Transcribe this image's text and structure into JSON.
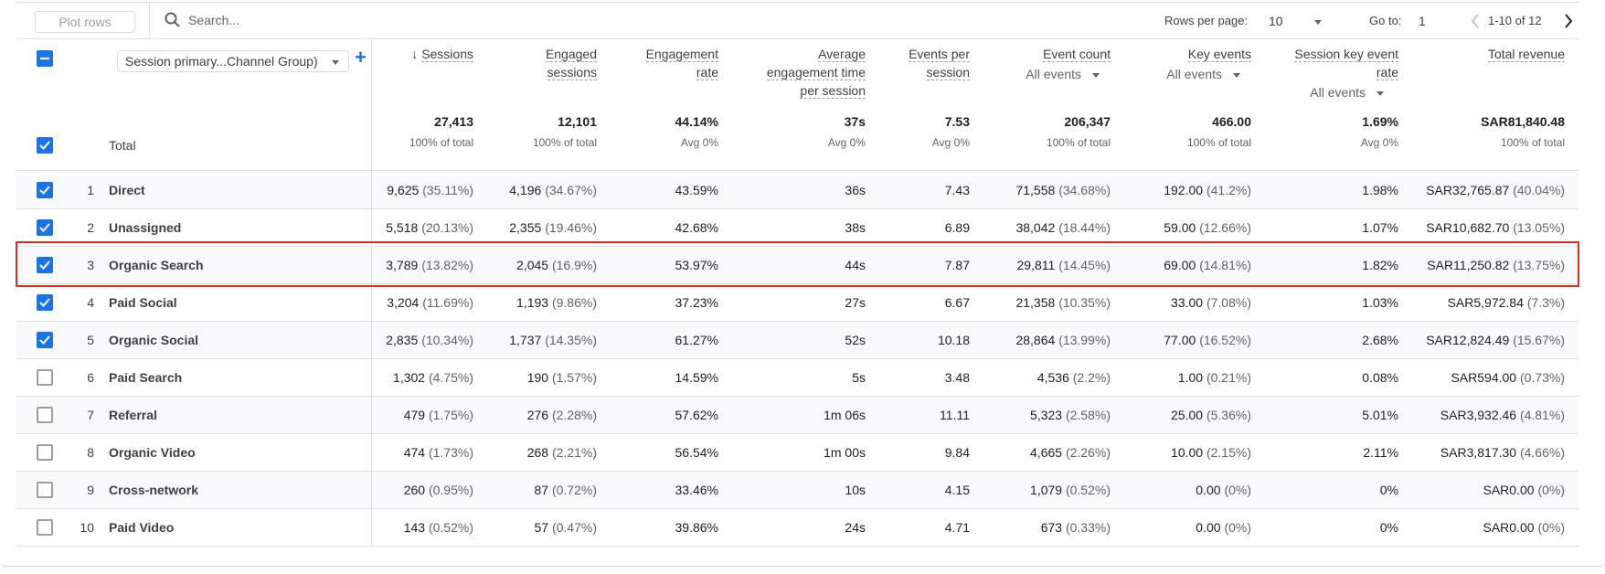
{
  "toolbar": {
    "plot_rows": "Plot rows",
    "search_placeholder": "Search...",
    "rows_per_page_label": "Rows per page:",
    "rows_per_page": "10",
    "goto_label": "Go to:",
    "goto_value": "1",
    "range": "1-10 of 12"
  },
  "dimension": {
    "label": "Session primary...Channel Group)"
  },
  "columns": [
    {
      "key": "sessions",
      "label": "Sessions",
      "sorted": "desc"
    },
    {
      "key": "engaged",
      "label": "Engaged sessions"
    },
    {
      "key": "rate",
      "label": "Engagement rate"
    },
    {
      "key": "avgtime",
      "label": "Average engagement time per session"
    },
    {
      "key": "eps",
      "label": "Events per session"
    },
    {
      "key": "eventcount",
      "label": "Event count",
      "filter": "All events"
    },
    {
      "key": "keyevents",
      "label": "Key events",
      "filter": "All events"
    },
    {
      "key": "skr",
      "label": "Session key event rate",
      "filter": "All events"
    },
    {
      "key": "revenue",
      "label": "Total revenue"
    }
  ],
  "header_lines": [
    [
      "Sessions"
    ],
    [
      "Engaged",
      "sessions"
    ],
    [
      "Engagement",
      "rate"
    ],
    [
      "Average",
      "engagement time",
      "per session"
    ],
    [
      "Events per",
      "session"
    ],
    [
      "Event count"
    ],
    [
      "Key events"
    ],
    [
      "Session key event",
      "rate"
    ],
    [
      "Total revenue"
    ]
  ],
  "totals": {
    "label": "Total",
    "values": [
      "27,413",
      "12,101",
      "44.14%",
      "37s",
      "7.53",
      "206,347",
      "466.00",
      "1.69%",
      "SAR81,840.48"
    ],
    "subs": [
      "100% of total",
      "100% of total",
      "Avg 0%",
      "Avg 0%",
      "Avg 0%",
      "100% of total",
      "100% of total",
      "Avg 0%",
      "100% of total"
    ]
  },
  "rows": [
    {
      "n": "1",
      "name": "Direct",
      "checked": true,
      "v": [
        [
          "9,625",
          "(35.11%)"
        ],
        [
          "4,196",
          "(34.67%)"
        ],
        [
          "43.59%",
          ""
        ],
        [
          "36s",
          ""
        ],
        [
          "7.43",
          ""
        ],
        [
          "71,558",
          "(34.68%)"
        ],
        [
          "192.00",
          "(41.2%)"
        ],
        [
          "1.98%",
          ""
        ],
        [
          "SAR32,765.87",
          "(40.04%)"
        ]
      ]
    },
    {
      "n": "2",
      "name": "Unassigned",
      "checked": true,
      "v": [
        [
          "5,518",
          "(20.13%)"
        ],
        [
          "2,355",
          "(19.46%)"
        ],
        [
          "42.68%",
          ""
        ],
        [
          "38s",
          ""
        ],
        [
          "6.89",
          ""
        ],
        [
          "38,042",
          "(18.44%)"
        ],
        [
          "59.00",
          "(12.66%)"
        ],
        [
          "1.07%",
          ""
        ],
        [
          "SAR10,682.70",
          "(13.05%)"
        ]
      ]
    },
    {
      "n": "3",
      "name": "Organic Search",
      "checked": true,
      "highlighted": true,
      "v": [
        [
          "3,789",
          "(13.82%)"
        ],
        [
          "2,045",
          "(16.9%)"
        ],
        [
          "53.97%",
          ""
        ],
        [
          "44s",
          ""
        ],
        [
          "7.87",
          ""
        ],
        [
          "29,811",
          "(14.45%)"
        ],
        [
          "69.00",
          "(14.81%)"
        ],
        [
          "1.82%",
          ""
        ],
        [
          "SAR11,250.82",
          "(13.75%)"
        ]
      ]
    },
    {
      "n": "4",
      "name": "Paid Social",
      "checked": true,
      "v": [
        [
          "3,204",
          "(11.69%)"
        ],
        [
          "1,193",
          "(9.86%)"
        ],
        [
          "37.23%",
          ""
        ],
        [
          "27s",
          ""
        ],
        [
          "6.67",
          ""
        ],
        [
          "21,358",
          "(10.35%)"
        ],
        [
          "33.00",
          "(7.08%)"
        ],
        [
          "1.03%",
          ""
        ],
        [
          "SAR5,972.84",
          "(7.3%)"
        ]
      ]
    },
    {
      "n": "5",
      "name": "Organic Social",
      "checked": true,
      "v": [
        [
          "2,835",
          "(10.34%)"
        ],
        [
          "1,737",
          "(14.35%)"
        ],
        [
          "61.27%",
          ""
        ],
        [
          "52s",
          ""
        ],
        [
          "10.18",
          ""
        ],
        [
          "28,864",
          "(13.99%)"
        ],
        [
          "77.00",
          "(16.52%)"
        ],
        [
          "2.68%",
          ""
        ],
        [
          "SAR12,824.49",
          "(15.67%)"
        ]
      ]
    },
    {
      "n": "6",
      "name": "Paid Search",
      "checked": false,
      "v": [
        [
          "1,302",
          "(4.75%)"
        ],
        [
          "190",
          "(1.57%)"
        ],
        [
          "14.59%",
          ""
        ],
        [
          "5s",
          ""
        ],
        [
          "3.48",
          ""
        ],
        [
          "4,536",
          "(2.2%)"
        ],
        [
          "1.00",
          "(0.21%)"
        ],
        [
          "0.08%",
          ""
        ],
        [
          "SAR594.00",
          "(0.73%)"
        ]
      ]
    },
    {
      "n": "7",
      "name": "Referral",
      "checked": false,
      "v": [
        [
          "479",
          "(1.75%)"
        ],
        [
          "276",
          "(2.28%)"
        ],
        [
          "57.62%",
          ""
        ],
        [
          "1m 06s",
          ""
        ],
        [
          "11.11",
          ""
        ],
        [
          "5,323",
          "(2.58%)"
        ],
        [
          "25.00",
          "(5.36%)"
        ],
        [
          "5.01%",
          ""
        ],
        [
          "SAR3,932.46",
          "(4.81%)"
        ]
      ]
    },
    {
      "n": "8",
      "name": "Organic Video",
      "checked": false,
      "v": [
        [
          "474",
          "(1.73%)"
        ],
        [
          "268",
          "(2.21%)"
        ],
        [
          "56.54%",
          ""
        ],
        [
          "1m 00s",
          ""
        ],
        [
          "9.84",
          ""
        ],
        [
          "4,665",
          "(2.26%)"
        ],
        [
          "10.00",
          "(2.15%)"
        ],
        [
          "2.11%",
          ""
        ],
        [
          "SAR3,817.30",
          "(4.66%)"
        ]
      ]
    },
    {
      "n": "9",
      "name": "Cross-network",
      "checked": false,
      "v": [
        [
          "260",
          "(0.95%)"
        ],
        [
          "87",
          "(0.72%)"
        ],
        [
          "33.46%",
          ""
        ],
        [
          "10s",
          ""
        ],
        [
          "4.15",
          ""
        ],
        [
          "1,079",
          "(0.52%)"
        ],
        [
          "0.00",
          "(0%)"
        ],
        [
          "0%",
          ""
        ],
        [
          "SAR0.00",
          "(0%)"
        ]
      ]
    },
    {
      "n": "10",
      "name": "Paid Video",
      "checked": false,
      "v": [
        [
          "143",
          "(0.52%)"
        ],
        [
          "57",
          "(0.47%)"
        ],
        [
          "39.86%",
          ""
        ],
        [
          "24s",
          ""
        ],
        [
          "4.71",
          ""
        ],
        [
          "673",
          "(0.33%)"
        ],
        [
          "0.00",
          "(0%)"
        ],
        [
          "0%",
          ""
        ],
        [
          "SAR0.00",
          "(0%)"
        ]
      ]
    }
  ],
  "colors": {
    "accent": "#1a73e8",
    "highlight_border": "#d93025",
    "alt_row": "#f8f9fa"
  }
}
